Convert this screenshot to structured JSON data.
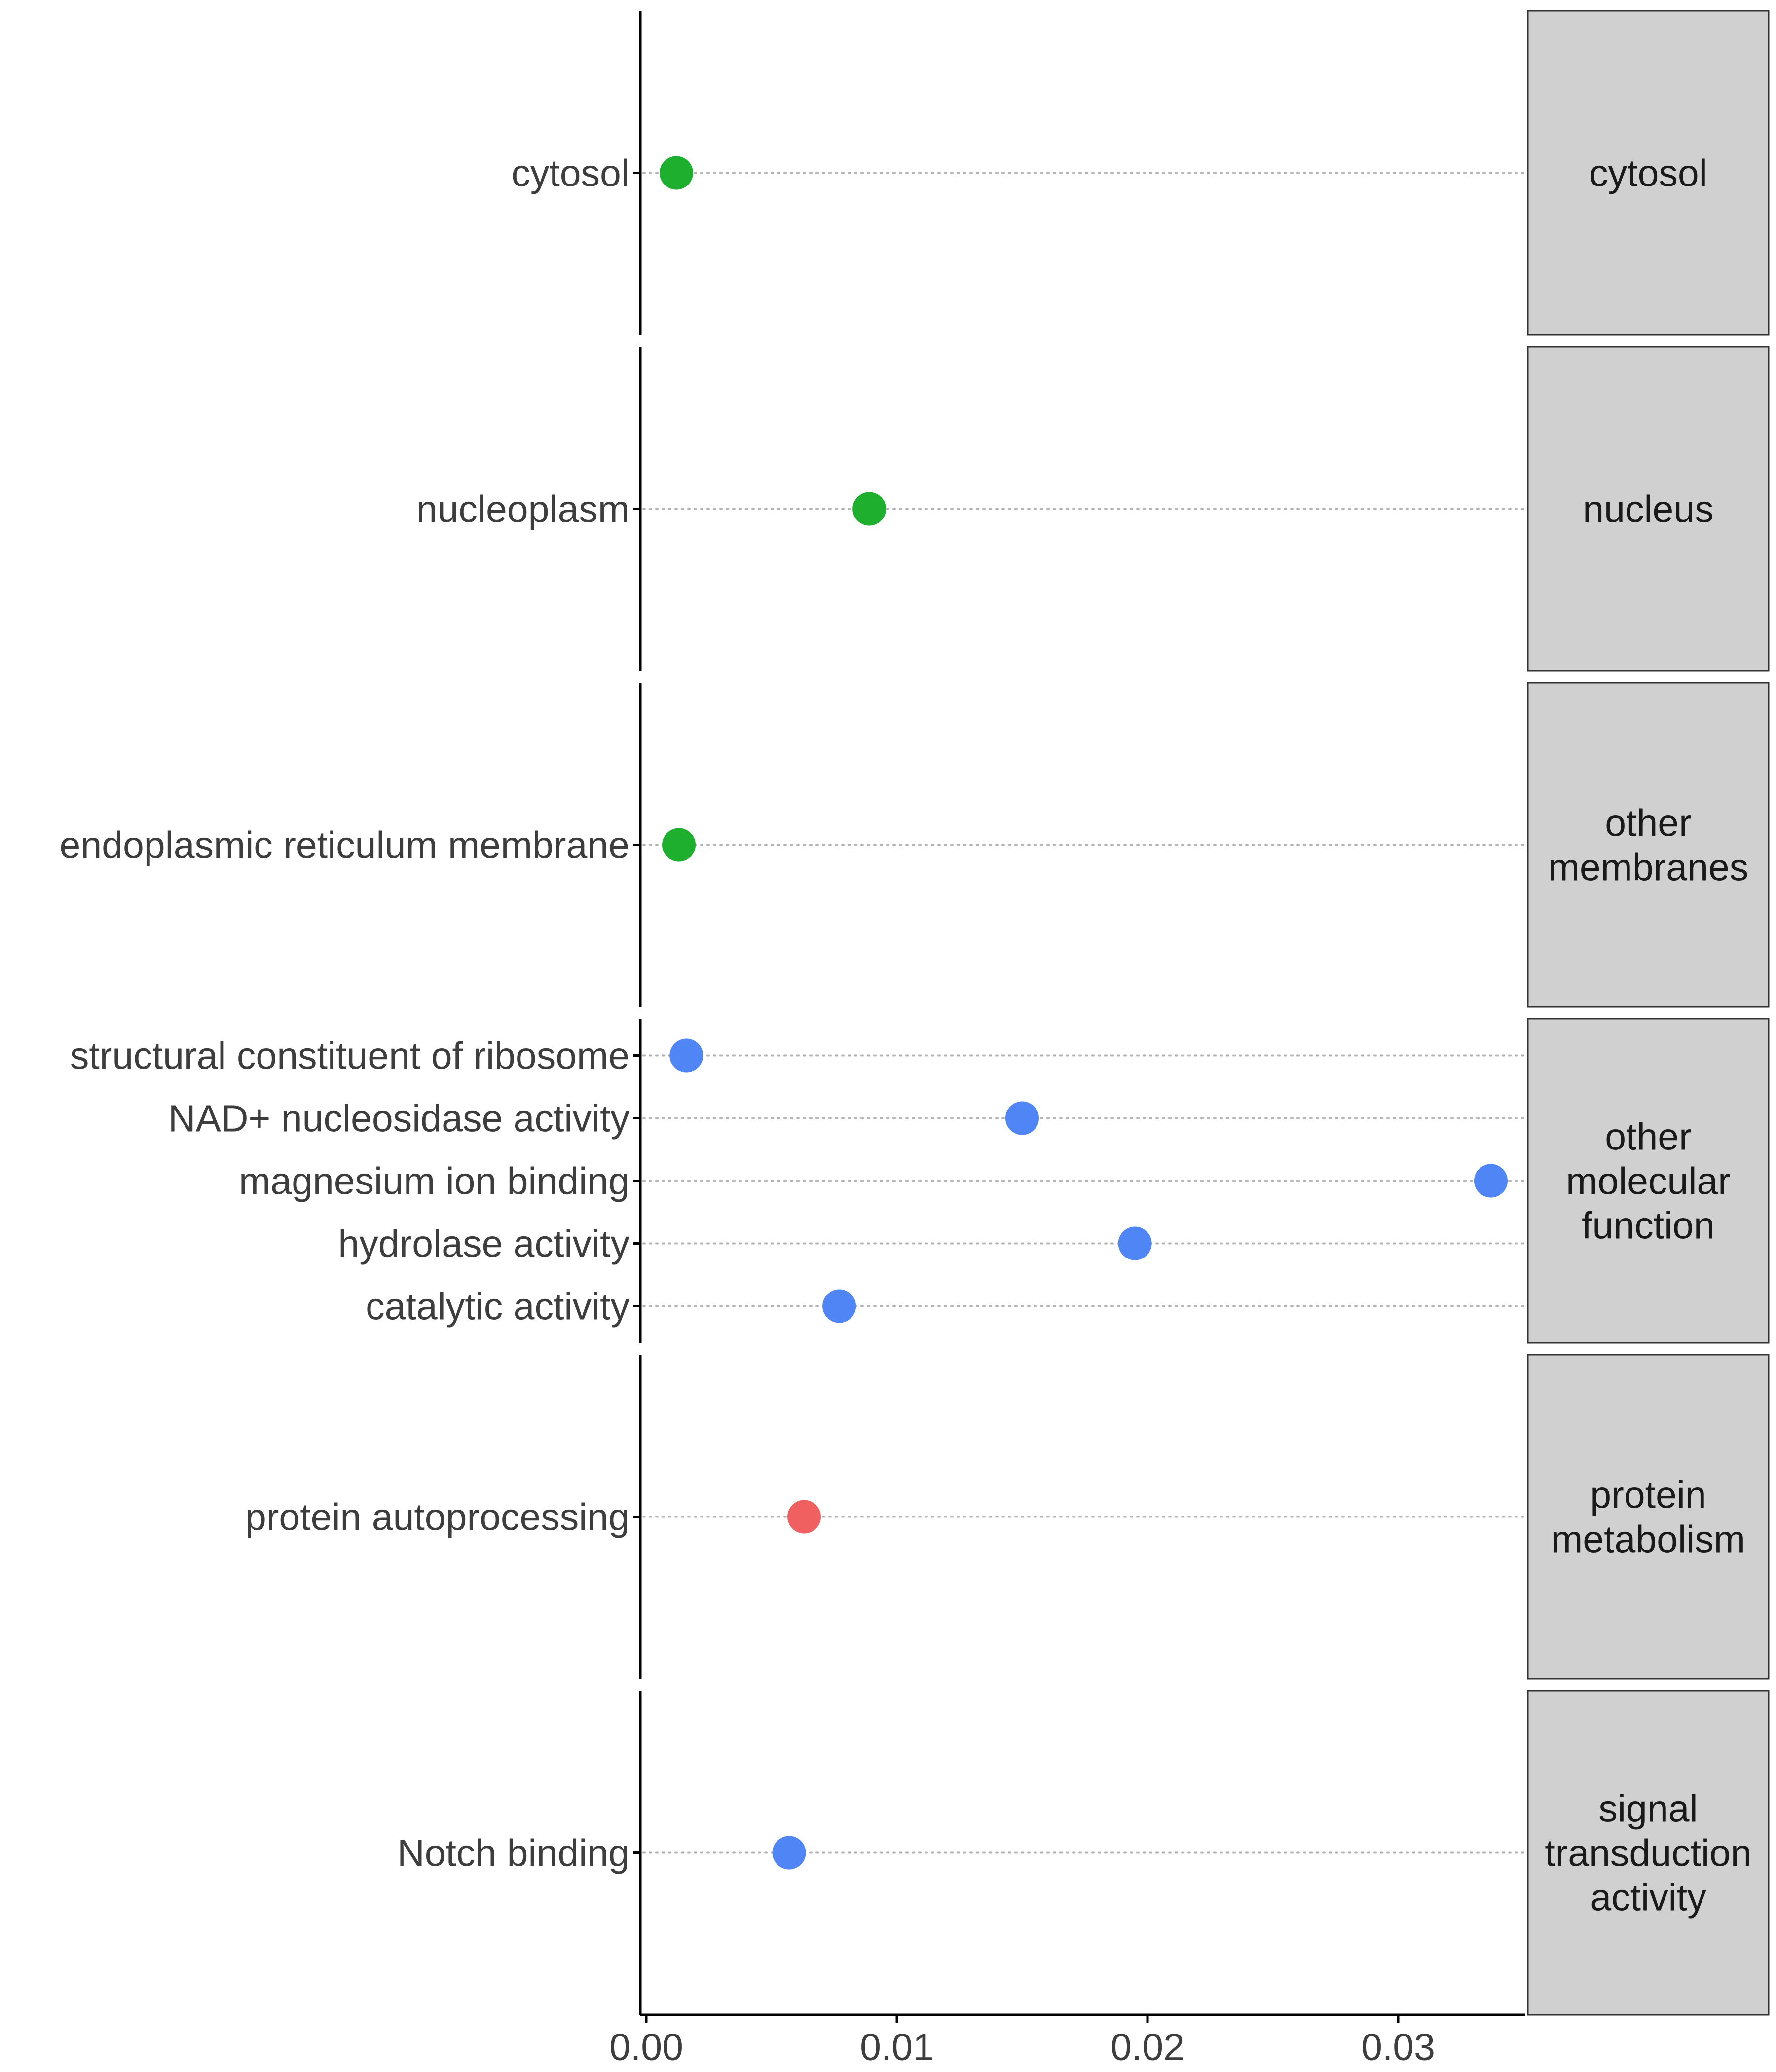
{
  "chart_data": {
    "type": "scatter",
    "xlim": [
      0,
      0.0355
    ],
    "x_ticks": [
      {
        "value": 0.0,
        "label": "0.00"
      },
      {
        "value": 0.01,
        "label": "0.01"
      },
      {
        "value": 0.02,
        "label": "0.02"
      },
      {
        "value": 0.03,
        "label": "0.03"
      }
    ],
    "xlabel": "",
    "ylabel": "",
    "title": "",
    "grid": false,
    "legend": false,
    "colors": {
      "green": "#1faf2f",
      "blue": "#5085f5",
      "red": "#f06060"
    },
    "panels": [
      {
        "label": "cytosol",
        "label_lines": [
          "cytosol"
        ],
        "points": [
          {
            "term": "cytosol",
            "x": 0.0012,
            "color": "green"
          }
        ]
      },
      {
        "label": "nucleus",
        "label_lines": [
          "nucleus"
        ],
        "points": [
          {
            "term": "nucleoplasm",
            "x": 0.0089,
            "color": "green"
          }
        ]
      },
      {
        "label": "other membranes",
        "label_lines": [
          "other",
          "membranes"
        ],
        "points": [
          {
            "term": "endoplasmic reticulum membrane",
            "x": 0.0013,
            "color": "green"
          }
        ]
      },
      {
        "label": "other molecular function",
        "label_lines": [
          "other",
          "molecular",
          "function"
        ],
        "points": [
          {
            "term": "structural constituent of ribosome",
            "x": 0.0016,
            "color": "blue"
          },
          {
            "term": "NAD+ nucleosidase activity",
            "x": 0.015,
            "color": "blue"
          },
          {
            "term": "magnesium ion binding",
            "x": 0.0337,
            "color": "blue"
          },
          {
            "term": "hydrolase activity",
            "x": 0.0195,
            "color": "blue"
          },
          {
            "term": "catalytic activity",
            "x": 0.0077,
            "color": "blue"
          }
        ]
      },
      {
        "label": "protein metabolism",
        "label_lines": [
          "protein",
          "metabolism"
        ],
        "points": [
          {
            "term": "protein autoprocessing",
            "x": 0.0063,
            "color": "red"
          }
        ]
      },
      {
        "label": "signal transduction activity",
        "label_lines": [
          "signal",
          "transduction",
          "activity"
        ],
        "points": [
          {
            "term": "Notch binding",
            "x": 0.0057,
            "color": "blue"
          }
        ]
      }
    ]
  }
}
